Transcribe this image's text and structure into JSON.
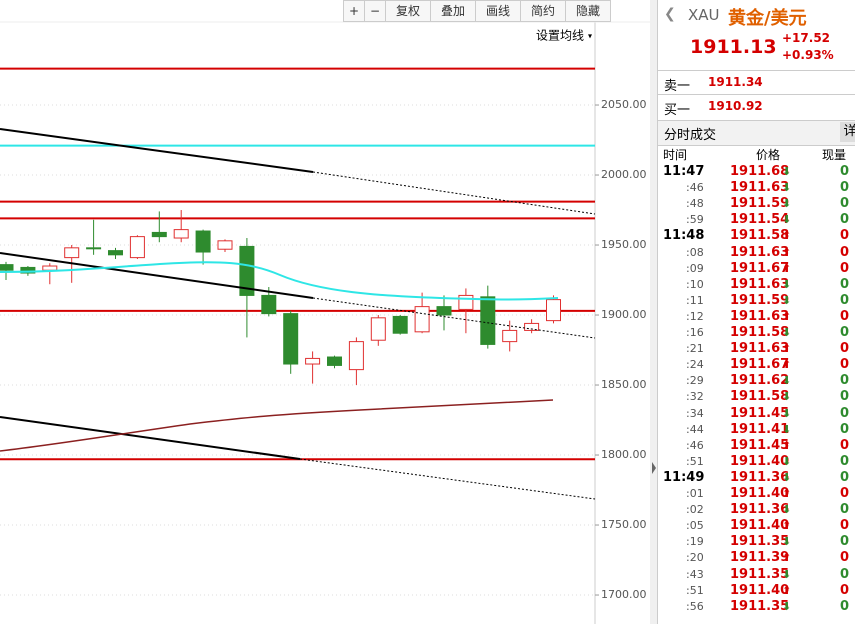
{
  "toolbar": {
    "buttons": [
      "+",
      "−",
      "复权",
      "叠加",
      "画线",
      "简约",
      "隐藏"
    ],
    "ma_setting": "设置均线"
  },
  "chart_data": {
    "type": "candlestick",
    "ylim": [
      1679.3,
      2109.3
    ],
    "yticks": [
      {
        "value": 2050,
        "label": "2050.00"
      },
      {
        "value": 2000,
        "label": "2000.00"
      },
      {
        "value": 1950,
        "label": "1950.00"
      },
      {
        "value": 1900,
        "label": "1900.00"
      },
      {
        "value": 1850,
        "label": "1850.00"
      },
      {
        "value": 1800,
        "label": "1800.00"
      },
      {
        "value": 1750,
        "label": "1750.00"
      },
      {
        "value": 1700,
        "label": "1700.00"
      }
    ],
    "levels": [
      2076,
      2021,
      1981,
      1969,
      1903,
      1797
    ],
    "level_colors": [
      "#d40000",
      "#2ee6e6",
      "#d40000",
      "#d40000",
      "#d40000",
      "#d40000"
    ],
    "up_color": "#e03030",
    "down_color": "#2e8b2e",
    "candles": {
      "open": [
        1936,
        1934,
        1932,
        1941,
        1948,
        1946,
        1941,
        1959,
        1955,
        1960,
        1947,
        1949,
        1914,
        1901,
        1865,
        1870,
        1861,
        1882,
        1899,
        1888,
        1906,
        1904,
        1913,
        1881,
        1889,
        1896
      ],
      "high": [
        1938,
        1935,
        1937,
        1950,
        1968,
        1948,
        1957,
        1974,
        1975,
        1961,
        1954,
        1955,
        1920,
        1903,
        1874,
        1871,
        1884,
        1900,
        1900,
        1916,
        1914,
        1919,
        1921,
        1896,
        1897,
        1914
      ],
      "low": [
        1925,
        1928,
        1922,
        1923,
        1943,
        1940,
        1940,
        1952,
        1952,
        1936,
        1945,
        1884,
        1899,
        1858,
        1851,
        1862,
        1850,
        1878,
        1886,
        1887,
        1889,
        1887,
        1876,
        1874,
        1887,
        1894
      ],
      "close": [
        1932,
        1930,
        1935,
        1948,
        1948,
        1943,
        1956,
        1956,
        1961,
        1945,
        1953,
        1914,
        1901,
        1865,
        1869,
        1864,
        1881,
        1898,
        1887,
        1906,
        1900,
        1914,
        1879,
        1889,
        1894,
        1911
      ]
    }
  },
  "quote": {
    "symbol": "XAU",
    "name": "黄金/美元",
    "price": "1911.13",
    "change": "+17.52",
    "change_pct": "+0.93%",
    "ask_label": "卖一",
    "ask": "1911.34",
    "bid_label": "买一",
    "bid": "1910.92"
  },
  "trades": {
    "title": "分时成交",
    "detail": "详",
    "headers": [
      "时间",
      "价格",
      "现量"
    ],
    "rows": [
      [
        "11:47",
        "1911.68",
        "⬇",
        "0"
      ],
      [
        ":46",
        "1911.63",
        "⬇",
        "0"
      ],
      [
        ":48",
        "1911.59",
        "⬇",
        "0"
      ],
      [
        ":59",
        "1911.54",
        "⬇",
        "0"
      ],
      [
        "11:48",
        "1911.58",
        "⬆",
        "0"
      ],
      [
        ":08",
        "1911.63",
        "⬆",
        "0"
      ],
      [
        ":09",
        "1911.67",
        "⬆",
        "0"
      ],
      [
        ":10",
        "1911.63",
        "⬇",
        "0"
      ],
      [
        ":11",
        "1911.59",
        "⬇",
        "0"
      ],
      [
        ":12",
        "1911.63",
        "⬆",
        "0"
      ],
      [
        ":16",
        "1911.58",
        "⬇",
        "0"
      ],
      [
        ":21",
        "1911.63",
        "⬆",
        "0"
      ],
      [
        ":24",
        "1911.67",
        "⬆",
        "0"
      ],
      [
        ":29",
        "1911.62",
        "⬇",
        "0"
      ],
      [
        ":32",
        "1911.58",
        "⬇",
        "0"
      ],
      [
        ":34",
        "1911.45",
        "⬇",
        "0"
      ],
      [
        ":44",
        "1911.41",
        "⬇",
        "0"
      ],
      [
        ":46",
        "1911.45",
        "⬆",
        "0"
      ],
      [
        ":51",
        "1911.40",
        "⬇",
        "0"
      ],
      [
        "11:49",
        "1911.36",
        "⬇",
        "0"
      ],
      [
        ":01",
        "1911.40",
        "⬆",
        "0"
      ],
      [
        ":02",
        "1911.36",
        "⬇",
        "0"
      ],
      [
        ":05",
        "1911.40",
        "⬆",
        "0"
      ],
      [
        ":19",
        "1911.35",
        "⬇",
        "0"
      ],
      [
        ":20",
        "1911.39",
        "⬆",
        "0"
      ],
      [
        ":43",
        "1911.35",
        "⬇",
        "0"
      ],
      [
        ":51",
        "1911.40",
        "⬆",
        "0"
      ],
      [
        ":56",
        "1911.35",
        "⬇",
        "0"
      ]
    ]
  }
}
